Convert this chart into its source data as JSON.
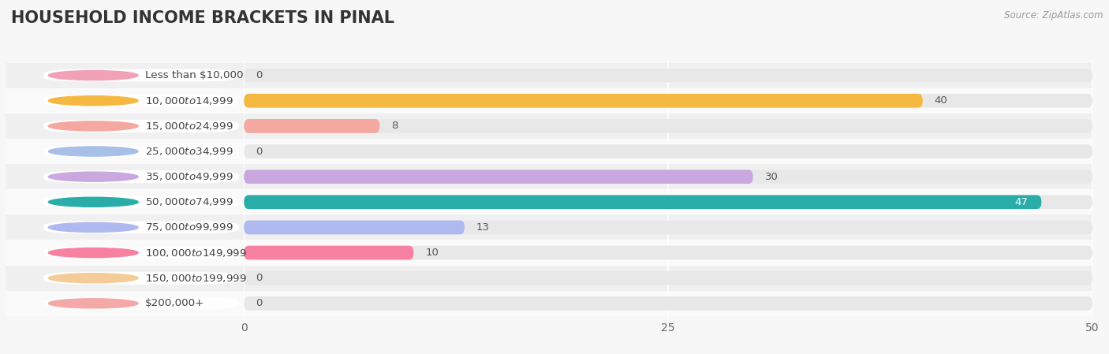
{
  "title": "HOUSEHOLD INCOME BRACKETS IN PINAL",
  "source": "Source: ZipAtlas.com",
  "categories": [
    "Less than $10,000",
    "$10,000 to $14,999",
    "$15,000 to $24,999",
    "$25,000 to $34,999",
    "$35,000 to $49,999",
    "$50,000 to $74,999",
    "$75,000 to $99,999",
    "$100,000 to $149,999",
    "$150,000 to $199,999",
    "$200,000+"
  ],
  "values": [
    0,
    40,
    8,
    0,
    30,
    47,
    13,
    10,
    0,
    0
  ],
  "bar_colors": [
    "#f2a0b5",
    "#f5b942",
    "#f5a8a0",
    "#a8bfe8",
    "#c9a8e0",
    "#2aada8",
    "#b0b8f0",
    "#f880a0",
    "#f5cc98",
    "#f5a8a8"
  ],
  "background_color": "#f7f7f7",
  "bar_bg_color": "#e8e8e8",
  "row_bg_even": "#f0f0f0",
  "row_bg_odd": "#fafafa",
  "xlim": [
    0,
    50
  ],
  "xticks": [
    0,
    25,
    50
  ],
  "title_fontsize": 15,
  "label_fontsize": 10,
  "value_fontsize": 9.5,
  "source_fontsize": 8.5
}
